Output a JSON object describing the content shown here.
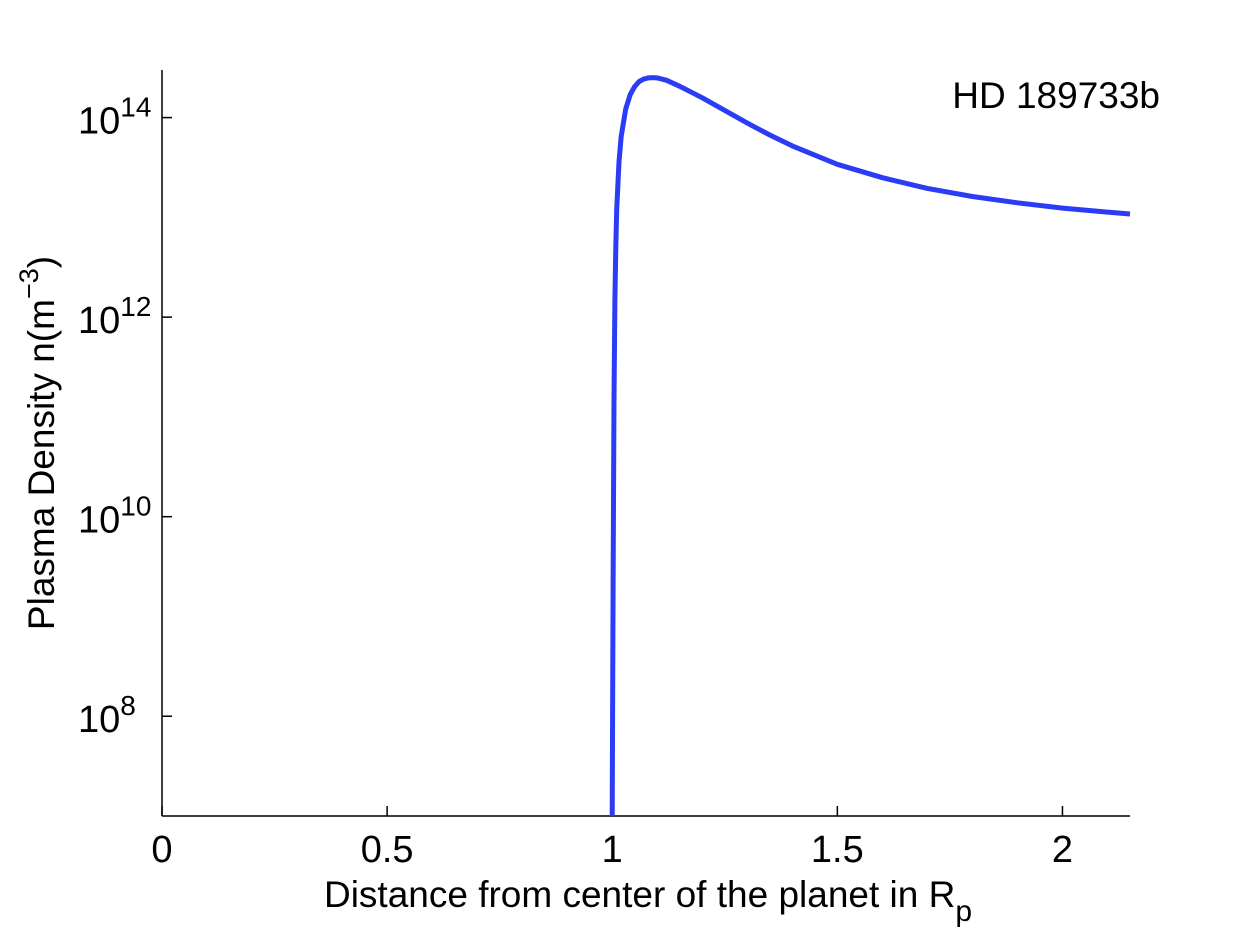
{
  "chart_data": {
    "type": "line",
    "title": "",
    "annotation": "HD 189733b",
    "xlabel": {
      "text": "Distance from center of the planet in R",
      "sub": "p"
    },
    "ylabel": {
      "text": "Plasma Density n(m",
      "sup": "−3",
      "tail": ")"
    },
    "xlim": [
      0,
      2.15
    ],
    "ylim": [
      10000000,
      300000000000000
    ],
    "yscale": "log",
    "grid": false,
    "line_color": "#2a3cf5",
    "x_ticks": [
      {
        "value": 0,
        "label": "0"
      },
      {
        "value": 0.5,
        "label": "0.5"
      },
      {
        "value": 1,
        "label": "1"
      },
      {
        "value": 1.5,
        "label": "1.5"
      },
      {
        "value": 2,
        "label": "2"
      }
    ],
    "y_ticks": [
      {
        "value": 100000000,
        "base": "10",
        "exp": "8"
      },
      {
        "value": 10000000000,
        "base": "10",
        "exp": "10"
      },
      {
        "value": 1000000000000,
        "base": "10",
        "exp": "12"
      },
      {
        "value": 100000000000000,
        "base": "10",
        "exp": "14"
      }
    ],
    "series": [
      {
        "x": [
          1.0,
          1.002,
          1.004,
          1.006,
          1.008,
          1.01,
          1.015,
          1.02,
          1.03,
          1.04,
          1.05,
          1.06,
          1.07,
          1.08,
          1.09,
          1.1,
          1.12,
          1.15,
          1.2,
          1.25,
          1.3,
          1.35,
          1.4,
          1.5,
          1.6,
          1.7,
          1.8,
          1.9,
          2.0,
          2.1,
          2.15
        ],
        "y": [
          10000000.0,
          2000000000.0,
          150000000000.0,
          1500000000000.0,
          5000000000000.0,
          12000000000000.0,
          36000000000000.0,
          65000000000000.0,
          122000000000000.0,
          170000000000000.0,
          205000000000000.0,
          230000000000000.0,
          243000000000000.0,
          250000000000000.0,
          252000000000000.0,
          250000000000000.0,
          237000000000000.0,
          206000000000000.0,
          158000000000000.0,
          118000000000000.0,
          88000000000000.0,
          67000000000000.0,
          52000000000000.0,
          34000000000000.0,
          25000000000000.0,
          19500000000000.0,
          16200000000000.0,
          14000000000000.0,
          12400000000000.0,
          11300000000000.0,
          10800000000000.0
        ]
      }
    ]
  }
}
